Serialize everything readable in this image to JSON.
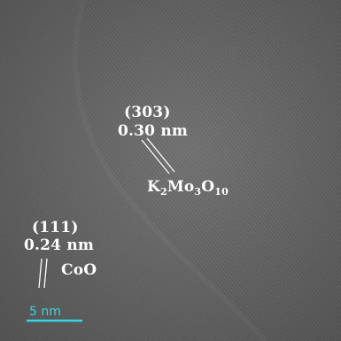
{
  "labels": {
    "plane_a": "(303)",
    "spacing_a": "0.30 nm",
    "compound_a": {
      "k": "K",
      "k_sub": "2",
      "mo": "Mo",
      "mo_sub": "3",
      "o": "O",
      "o_sub": "10"
    },
    "plane_b": "(111)",
    "spacing_b": "0.24 nm",
    "compound_b": "CoO"
  },
  "scale_bar": {
    "label": "5 nm"
  },
  "colors": {
    "label": "#ffffff",
    "scale_bar": "#33d6e8",
    "background": "#6b6b6b"
  }
}
